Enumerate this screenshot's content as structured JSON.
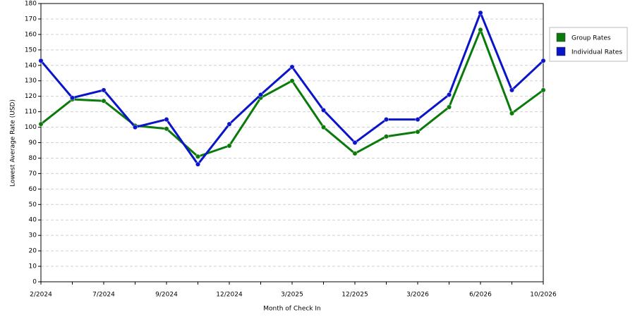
{
  "chart_data": {
    "type": "line",
    "x_label": "Month of Check In",
    "y_label": "Lowest Average Rate (USD)",
    "categories": [
      "2/2024",
      null,
      "7/2024",
      null,
      "9/2024",
      null,
      "12/2024",
      null,
      "3/2025",
      null,
      "12/2025",
      null,
      "3/2026",
      null,
      "6/2026",
      null,
      "10/2026"
    ],
    "series": [
      {
        "name": "Group Rates",
        "color": "#0a7a0a",
        "values": [
          102,
          118,
          117,
          101,
          99,
          81,
          88,
          119,
          130,
          100,
          83,
          94,
          97,
          113,
          163,
          109,
          124
        ]
      },
      {
        "name": "Individual Rates",
        "color": "#0a14c8",
        "values": [
          143,
          119,
          124,
          100,
          105,
          76,
          102,
          121,
          139,
          111,
          90,
          105,
          105,
          121,
          174,
          124,
          143
        ]
      }
    ],
    "ylim": [
      0,
      180
    ],
    "yticks": [
      0,
      10,
      20,
      30,
      40,
      50,
      60,
      70,
      80,
      90,
      100,
      110,
      120,
      130,
      140,
      150,
      160,
      170,
      180
    ],
    "grid": true,
    "legend": "right"
  }
}
